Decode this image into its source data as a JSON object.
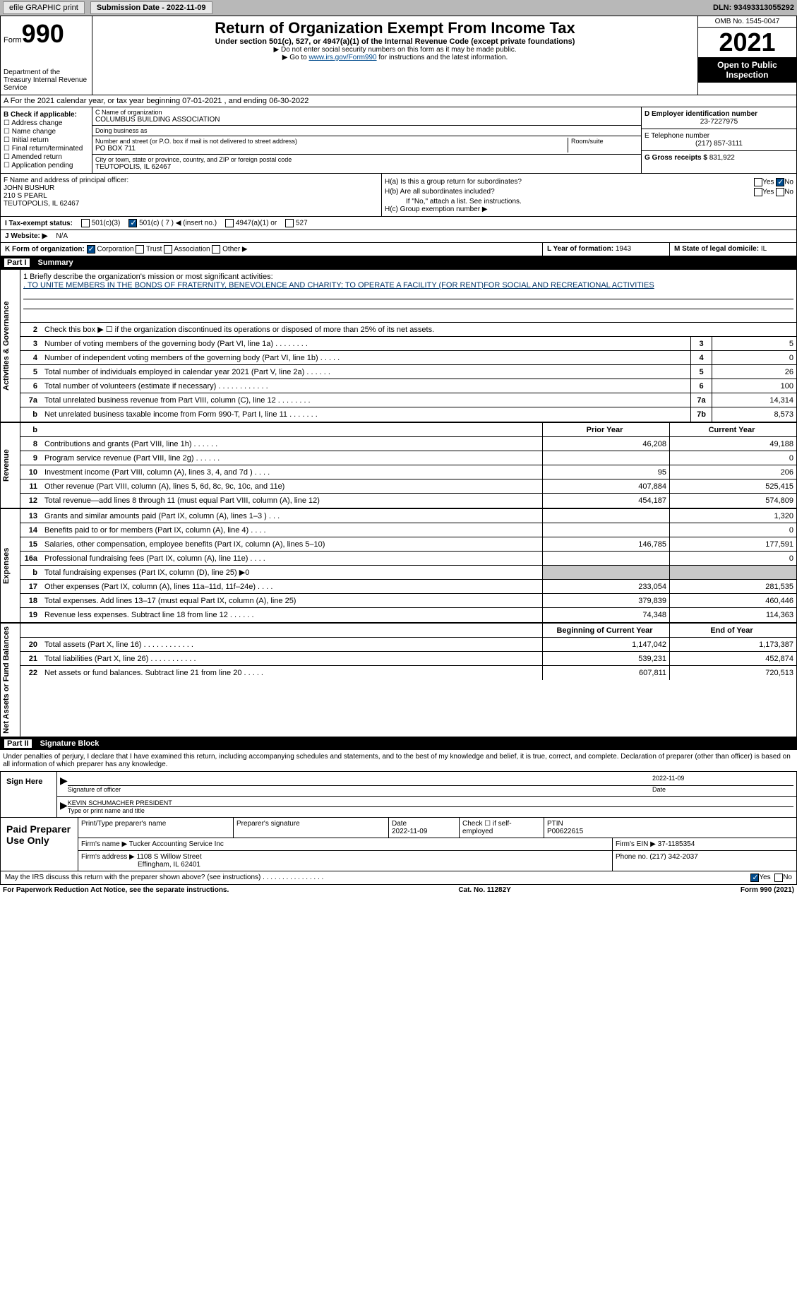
{
  "topbar": {
    "efile": "efile GRAPHIC print",
    "sub_label": "Submission Date - 2022-11-09",
    "dln": "DLN: 93493313055292"
  },
  "header": {
    "form_word": "Form",
    "form_num": "990",
    "dept": "Department of the Treasury Internal Revenue Service",
    "title": "Return of Organization Exempt From Income Tax",
    "subtitle": "Under section 501(c), 527, or 4947(a)(1) of the Internal Revenue Code (except private foundations)",
    "note1": "▶ Do not enter social security numbers on this form as it may be made public.",
    "note2_pre": "▶ Go to ",
    "note2_link": "www.irs.gov/Form990",
    "note2_post": " for instructions and the latest information.",
    "omb": "OMB No. 1545-0047",
    "year": "2021",
    "open": "Open to Public Inspection"
  },
  "cal_year": "A For the 2021 calendar year, or tax year beginning 07-01-2021    , and ending 06-30-2022",
  "b": {
    "label": "B Check if applicable:",
    "items": [
      "Address change",
      "Name change",
      "Initial return",
      "Final return/terminated",
      "Amended return",
      "Application pending"
    ]
  },
  "c": {
    "name_label": "C Name of organization",
    "name": "COLUMBUS BUILDING ASSOCIATION",
    "dba_label": "Doing business as",
    "dba": "",
    "addr_label": "Number and street (or P.O. box if mail is not delivered to street address)",
    "addr": "PO BOX 711",
    "room_label": "Room/suite",
    "city_label": "City or town, state or province, country, and ZIP or foreign postal code",
    "city": "TEUTOPOLIS, IL  62467"
  },
  "d": {
    "ein_label": "D Employer identification number",
    "ein": "23-7227975",
    "phone_label": "E Telephone number",
    "phone": "(217) 857-3111",
    "gross_label": "G Gross receipts $",
    "gross": "831,922"
  },
  "f": {
    "label": "F  Name and address of principal officer:",
    "name": "JOHN BUSHUR",
    "addr1": "210 S PEARL",
    "addr2": "TEUTOPOLIS, IL  62467"
  },
  "h": {
    "a_label": "H(a)  Is this a group return for subordinates?",
    "b_label": "H(b)  Are all subordinates included?",
    "b_note": "If \"No,\" attach a list. See instructions.",
    "c_label": "H(c)  Group exemption number ▶",
    "yes": "Yes",
    "no": "No"
  },
  "i": {
    "label": "I  Tax-exempt status:",
    "o1": "501(c)(3)",
    "o2": "501(c) ( 7 ) ◀ (insert no.)",
    "o3": "4947(a)(1) or",
    "o4": "527"
  },
  "j": {
    "label": "J  Website: ▶",
    "val": "N/A"
  },
  "k": {
    "label": "K Form of organization:",
    "o1": "Corporation",
    "o2": "Trust",
    "o3": "Association",
    "o4": "Other ▶"
  },
  "l": {
    "label": "L Year of formation:",
    "val": "1943"
  },
  "m": {
    "label": "M State of legal domicile:",
    "val": "IL"
  },
  "part1": {
    "num": "Part I",
    "title": "Summary"
  },
  "mission": {
    "label": "1  Briefly describe the organization's mission or most significant activities:",
    "text": ". TO UNITE MEMBERS IN THE BONDS OF FRATERNITY, BENEVOLENCE AND CHARITY; TO OPERATE A FACILITY (FOR RENT)FOR SOCIAL AND RECREATIONAL ACTIVITIES"
  },
  "vtabs": {
    "gov": "Activities & Governance",
    "rev": "Revenue",
    "exp": "Expenses",
    "net": "Net Assets or Fund Balances"
  },
  "gov_lines": [
    {
      "n": "2",
      "d": "Check this box ▶ ☐ if the organization discontinued its operations or disposed of more than 25% of its net assets."
    },
    {
      "n": "3",
      "d": "Number of voting members of the governing body (Part VI, line 1a)   .    .    .    .    .    .    .    .",
      "box": "3",
      "v": "5"
    },
    {
      "n": "4",
      "d": "Number of independent voting members of the governing body (Part VI, line 1b)   .    .    .    .    .",
      "box": "4",
      "v": "0"
    },
    {
      "n": "5",
      "d": "Total number of individuals employed in calendar year 2021 (Part V, line 2a)   .    .    .    .    .    .",
      "box": "5",
      "v": "26"
    },
    {
      "n": "6",
      "d": "Total number of volunteers (estimate if necessary)    .    .    .    .    .    .    .    .    .    .    .    .",
      "box": "6",
      "v": "100"
    },
    {
      "n": "7a",
      "d": "Total unrelated business revenue from Part VIII, column (C), line 12   .    .    .    .    .    .    .    .",
      "box": "7a",
      "v": "14,314"
    },
    {
      "n": "b",
      "d": "Net unrelated business taxable income from Form 990-T, Part I, line 11   .    .    .    .    .    .    .",
      "box": "7b",
      "v": "8,573"
    }
  ],
  "col_hdrs": {
    "prior": "Prior Year",
    "curr": "Current Year",
    "beg": "Beginning of Current Year",
    "end": "End of Year"
  },
  "rev_lines": [
    {
      "n": "8",
      "d": "Contributions and grants (Part VIII, line 1h)   .    .    .    .    .    .",
      "p": "46,208",
      "c": "49,188"
    },
    {
      "n": "9",
      "d": "Program service revenue (Part VIII, line 2g)   .    .    .    .    .    .",
      "p": "",
      "c": "0"
    },
    {
      "n": "10",
      "d": "Investment income (Part VIII, column (A), lines 3, 4, and 7d )   .    .    .    .",
      "p": "95",
      "c": "206"
    },
    {
      "n": "11",
      "d": "Other revenue (Part VIII, column (A), lines 5, 6d, 8c, 9c, 10c, and 11e)",
      "p": "407,884",
      "c": "525,415"
    },
    {
      "n": "12",
      "d": "Total revenue—add lines 8 through 11 (must equal Part VIII, column (A), line 12)",
      "p": "454,187",
      "c": "574,809"
    }
  ],
  "exp_lines": [
    {
      "n": "13",
      "d": "Grants and similar amounts paid (Part IX, column (A), lines 1–3 )   .    .    .",
      "p": "",
      "c": "1,320"
    },
    {
      "n": "14",
      "d": "Benefits paid to or for members (Part IX, column (A), line 4)   .    .    .    .",
      "p": "",
      "c": "0"
    },
    {
      "n": "15",
      "d": "Salaries, other compensation, employee benefits (Part IX, column (A), lines 5–10)",
      "p": "146,785",
      "c": "177,591"
    },
    {
      "n": "16a",
      "d": "Professional fundraising fees (Part IX, column (A), line 11e)   .    .    .    .",
      "p": "",
      "c": "0"
    },
    {
      "n": "b",
      "d": "Total fundraising expenses (Part IX, column (D), line 25) ▶0",
      "p": "shaded",
      "c": "shaded"
    },
    {
      "n": "17",
      "d": "Other expenses (Part IX, column (A), lines 11a–11d, 11f–24e)   .    .    .    .",
      "p": "233,054",
      "c": "281,535"
    },
    {
      "n": "18",
      "d": "Total expenses. Add lines 13–17 (must equal Part IX, column (A), line 25)",
      "p": "379,839",
      "c": "460,446"
    },
    {
      "n": "19",
      "d": "Revenue less expenses. Subtract line 18 from line 12   .    .    .    .    .    .",
      "p": "74,348",
      "c": "114,363"
    }
  ],
  "net_lines": [
    {
      "n": "20",
      "d": "Total assets (Part X, line 16)   .    .    .    .    .    .    .    .    .    .    .    .",
      "p": "1,147,042",
      "c": "1,173,387"
    },
    {
      "n": "21",
      "d": "Total liabilities (Part X, line 26)   .    .    .    .    .    .    .    .    .    .    .",
      "p": "539,231",
      "c": "452,874"
    },
    {
      "n": "22",
      "d": "Net assets or fund balances. Subtract line 21 from line 20   .    .    .    .    .",
      "p": "607,811",
      "c": "720,513"
    }
  ],
  "part2": {
    "num": "Part II",
    "title": "Signature Block"
  },
  "declare": "Under penalties of perjury, I declare that I have examined this return, including accompanying schedules and statements, and to the best of my knowledge and belief, it is true, correct, and complete. Declaration of preparer (other than officer) is based on all information of which preparer has any knowledge.",
  "sign": {
    "label": "Sign Here",
    "sig_label": "Signature of officer",
    "date": "2022-11-09",
    "date_label": "Date",
    "name": "KEVIN SCHUMACHER PRESIDENT",
    "name_label": "Type or print name and title"
  },
  "prep": {
    "label": "Paid Preparer Use Only",
    "name_label": "Print/Type preparer's name",
    "sig_label": "Preparer's signature",
    "date_label": "Date",
    "date": "2022-11-09",
    "self_label": "Check ☐ if self-employed",
    "ptin_label": "PTIN",
    "ptin": "P00622615",
    "firm_label": "Firm's name     ▶",
    "firm": "Tucker Accounting Service Inc",
    "ein_label": "Firm's EIN ▶",
    "ein": "37-1185354",
    "addr_label": "Firm's address ▶",
    "addr1": "1108 S Willow Street",
    "addr2": "Effingham, IL  62401",
    "phone_label": "Phone no.",
    "phone": "(217) 342-2037"
  },
  "discuss": {
    "q": "May the IRS discuss this return with the preparer shown above? (see instructions)    .    .    .    .    .    .    .    .    .    .    .    .    .    .    .    .",
    "yes": "Yes",
    "no": "No"
  },
  "footer": {
    "left": "For Paperwork Reduction Act Notice, see the separate instructions.",
    "mid": "Cat. No. 11282Y",
    "right": "Form 990 (2021)"
  }
}
